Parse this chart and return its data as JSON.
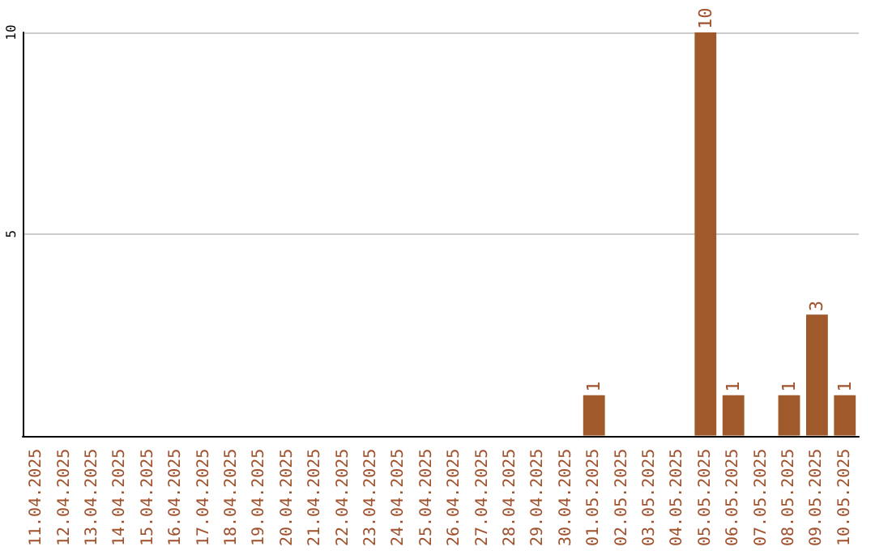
{
  "chart_data": {
    "type": "bar",
    "categories": [
      "11.04.2025",
      "12.04.2025",
      "13.04.2025",
      "14.04.2025",
      "15.04.2025",
      "16.04.2025",
      "17.04.2025",
      "18.04.2025",
      "19.04.2025",
      "20.04.2025",
      "21.04.2025",
      "22.04.2025",
      "23.04.2025",
      "24.04.2025",
      "25.04.2025",
      "26.04.2025",
      "27.04.2025",
      "28.04.2025",
      "29.04.2025",
      "30.04.2025",
      "01.05.2025",
      "02.05.2025",
      "03.05.2025",
      "04.05.2025",
      "05.05.2025",
      "06.05.2025",
      "07.05.2025",
      "08.05.2025",
      "09.05.2025",
      "10.05.2025"
    ],
    "values": [
      0,
      0,
      0,
      0,
      0,
      0,
      0,
      0,
      0,
      0,
      0,
      0,
      0,
      0,
      0,
      0,
      0,
      0,
      0,
      0,
      1,
      0,
      0,
      0,
      10,
      1,
      0,
      1,
      3,
      1
    ],
    "value_labels": [
      null,
      null,
      null,
      null,
      null,
      null,
      null,
      null,
      null,
      null,
      null,
      null,
      null,
      null,
      null,
      null,
      null,
      null,
      null,
      null,
      "1",
      null,
      null,
      null,
      "10",
      "1",
      null,
      "1",
      "3",
      "1"
    ],
    "color": "#a0592b",
    "ylim": [
      0,
      10
    ],
    "yticks": [
      5,
      10
    ],
    "grid": "y"
  }
}
